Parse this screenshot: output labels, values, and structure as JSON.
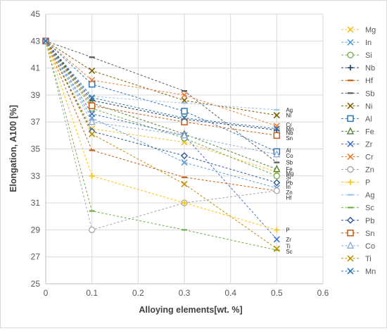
{
  "chart_data": {
    "type": "line",
    "title": "",
    "xlabel": "Alloying elements[wt. %]",
    "ylabel": "Elongation, A100 [%]",
    "xlim": [
      0,
      0.6
    ],
    "ylim": [
      25,
      45
    ],
    "x_ticks": [
      "0",
      "0.1",
      "0.2",
      "0.3",
      "0.4",
      "0.5",
      "0.6"
    ],
    "y_ticks": [
      "25",
      "27",
      "29",
      "31",
      "33",
      "35",
      "37",
      "39",
      "41",
      "43",
      "45"
    ],
    "x": [
      0,
      0.1,
      0.3,
      0.5
    ],
    "grid": true,
    "legend_position": "right",
    "series": [
      {
        "name": "Mg",
        "color": "#f4c02a",
        "marker": "x",
        "values": [
          43,
          36.5,
          35.5,
          33.3
        ]
      },
      {
        "name": "In",
        "color": "#5b9bd5",
        "marker": "x",
        "values": [
          43,
          37.3,
          34.0,
          32.1
        ]
      },
      {
        "name": "Si",
        "color": "#70ad47",
        "marker": "circle",
        "values": [
          43,
          38.0,
          35.8,
          33.0
        ]
      },
      {
        "name": "Nb",
        "color": "#1f3864",
        "marker": "plus",
        "values": [
          43,
          38.6,
          37.2,
          36.4
        ]
      },
      {
        "name": "Hf",
        "color": "#c55a11",
        "marker": "dash",
        "values": [
          43,
          34.9,
          32.9,
          31.9
        ]
      },
      {
        "name": "Sb",
        "color": "#595959",
        "marker": "dash",
        "values": [
          43,
          41.8,
          39.3,
          34.0
        ]
      },
      {
        "name": "Ni",
        "color": "#7f6000",
        "marker": "x",
        "values": [
          43,
          40.8,
          38.6,
          37.5
        ]
      },
      {
        "name": "Al",
        "color": "#2e75b6",
        "marker": "square",
        "values": [
          43,
          39.8,
          37.8,
          34.8
        ]
      },
      {
        "name": "Fe",
        "color": "#548235",
        "marker": "triangle",
        "values": [
          43,
          38.4,
          36.1,
          33.5
        ]
      },
      {
        "name": "Zr",
        "color": "#4472c4",
        "marker": "x",
        "values": [
          43,
          37.6,
          36.0,
          28.3
        ]
      },
      {
        "name": "Cr",
        "color": "#ed7d31",
        "marker": "x",
        "values": [
          43,
          40.1,
          39.0,
          36.7
        ]
      },
      {
        "name": "Zn",
        "color": "#a6a6a6",
        "marker": "circle",
        "values": [
          43,
          29.0,
          31.0,
          31.9
        ]
      },
      {
        "name": "P",
        "color": "#ffc000",
        "marker": "plus",
        "values": [
          43,
          33.0,
          31.0,
          29.0
        ]
      },
      {
        "name": "Ag",
        "color": "#9dc3e6",
        "marker": "dash",
        "values": [
          43,
          38.9,
          38.4,
          37.9
        ]
      },
      {
        "name": "Sc",
        "color": "#70ad47",
        "marker": "dash",
        "values": [
          43,
          30.4,
          29.0,
          27.5
        ]
      },
      {
        "name": "Pb",
        "color": "#2f5597",
        "marker": "diamond",
        "values": [
          43,
          36.3,
          34.5,
          32.5
        ]
      },
      {
        "name": "Sn",
        "color": "#c55a11",
        "marker": "square",
        "values": [
          43,
          38.2,
          37.0,
          36.0
        ]
      },
      {
        "name": "Co",
        "color": "#8faadc",
        "marker": "triangle",
        "values": [
          43,
          37.0,
          36.0,
          34.6
        ]
      },
      {
        "name": "Ti",
        "color": "#bf9000",
        "marker": "x",
        "values": [
          43,
          36.1,
          32.4,
          27.6
        ]
      },
      {
        "name": "Mn",
        "color": "#2e75b6",
        "marker": "x",
        "values": [
          43,
          38.8,
          37.3,
          36.5
        ]
      }
    ],
    "annotations": [
      {
        "text": "Ag",
        "x": 0.5,
        "y": 37.9
      },
      {
        "text": "Ni",
        "x": 0.5,
        "y": 37.5
      },
      {
        "text": "Cr",
        "x": 0.5,
        "y": 36.8
      },
      {
        "text": "Mn",
        "x": 0.5,
        "y": 36.5
      },
      {
        "text": "Nb",
        "x": 0.5,
        "y": 36.2
      },
      {
        "text": "Sn",
        "x": 0.5,
        "y": 35.8
      },
      {
        "text": "Al",
        "x": 0.5,
        "y": 34.9
      },
      {
        "text": "Co",
        "x": 0.5,
        "y": 34.5
      },
      {
        "text": "Sb",
        "x": 0.5,
        "y": 34.0
      },
      {
        "text": "Fe",
        "x": 0.5,
        "y": 33.5
      },
      {
        "text": "Mg",
        "x": 0.5,
        "y": 33.2
      },
      {
        "text": "Si",
        "x": 0.5,
        "y": 32.9
      },
      {
        "text": "Pb",
        "x": 0.5,
        "y": 32.5
      },
      {
        "text": "In",
        "x": 0.5,
        "y": 32.2
      },
      {
        "text": "Zn",
        "x": 0.5,
        "y": 31.8
      },
      {
        "text": "Hf",
        "x": 0.5,
        "y": 31.4
      },
      {
        "text": "P",
        "x": 0.5,
        "y": 29.0
      },
      {
        "text": "Zr",
        "x": 0.5,
        "y": 28.3
      },
      {
        "text": "Ti",
        "x": 0.5,
        "y": 27.8
      },
      {
        "text": "Sc",
        "x": 0.5,
        "y": 27.4
      }
    ]
  }
}
